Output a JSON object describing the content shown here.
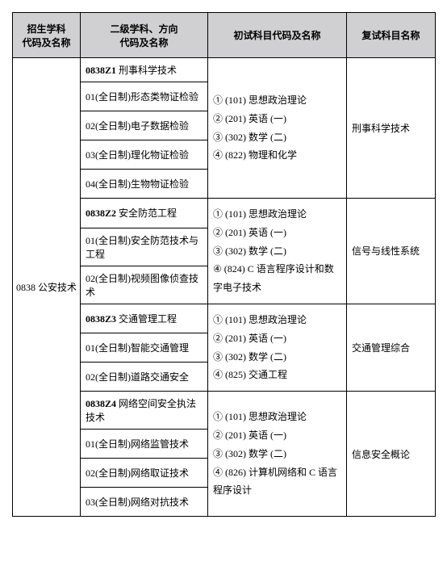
{
  "headers": {
    "col1_l1": "招生学科",
    "col1_l2": "代码及名称",
    "col2_l1": "二级学科、方向",
    "col2_l2": "代码及名称",
    "col3": "初试科目代码及名称",
    "col4": "复试科目名称"
  },
  "discipline": "0838 公安技术",
  "groups": [
    {
      "title_code": "0838Z1",
      "title_name": "刑事科学技术",
      "rows": [
        "01(全日制)形态类物证检验",
        "02(全日制)电子数据检验",
        "03(全日制)理化物证检验",
        "04(全日制)生物物证检验"
      ],
      "exam": [
        "① (101) 思想政治理论",
        "② (201) 英语 (一)",
        "③ (302) 数学 (二)",
        "④ (822) 物理和化学"
      ],
      "final": "刑事科学技术"
    },
    {
      "title_code": "0838Z2",
      "title_name": "安全防范工程",
      "rows": [
        "01(全日制)安全防范技术与工程",
        "02(全日制)视频图像侦查技术"
      ],
      "exam": [
        "① (101) 思想政治理论",
        "② (201) 英语 (一)",
        "③ (302) 数学 (二)",
        "④ (824) C 语言程序设计和数字电子技术"
      ],
      "final": "信号与线性系统"
    },
    {
      "title_code": "0838Z3",
      "title_name": "交通管理工程",
      "rows": [
        "01(全日制)智能交通管理",
        "02(全日制)道路交通安全"
      ],
      "exam": [
        "① (101) 思想政治理论",
        "② (201) 英语 (一)",
        "③ (302) 数学 (二)",
        "④ (825) 交通工程"
      ],
      "final": "交通管理综合"
    },
    {
      "title_code": "0838Z4",
      "title_name": "网络空间安全执法技术",
      "rows": [
        "01(全日制)网络监管技术",
        "02(全日制)网络取证技术",
        "03(全日制)网络对抗技术"
      ],
      "exam": [
        "① (101) 思想政治理论",
        "② (201) 英语 (一)",
        "③ (302) 数学 (二)",
        "④ (826) 计算机网络和 C 语言程序设计"
      ],
      "final": "信息安全概论"
    }
  ]
}
